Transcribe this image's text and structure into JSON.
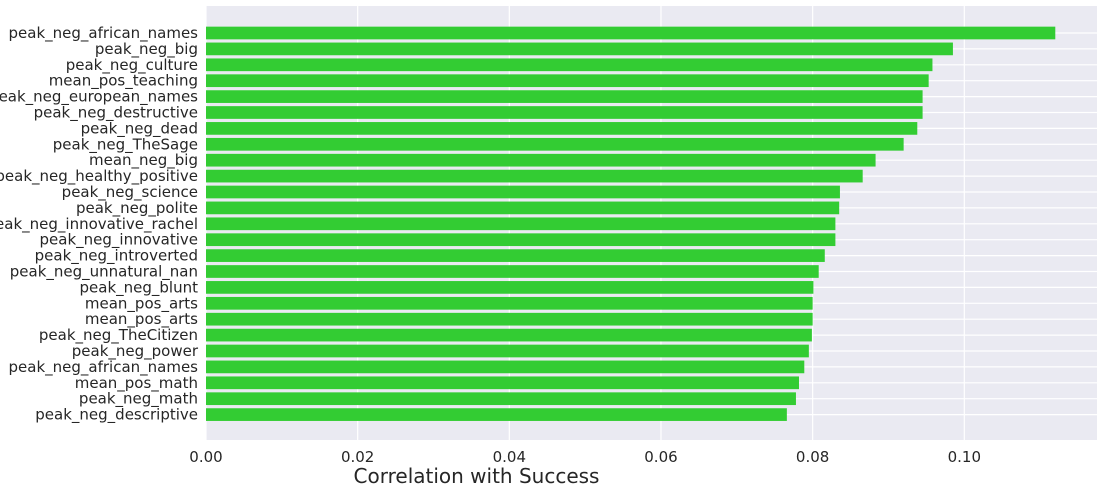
{
  "chart_data": {
    "type": "bar",
    "orientation": "horizontal",
    "xlabel": "Correlation with Success",
    "ylabel": "",
    "xlim": [
      0,
      0.1175
    ],
    "xticks": [
      0.0,
      0.02,
      0.04,
      0.06,
      0.08,
      0.1
    ],
    "xtick_labels": [
      "0.00",
      "0.02",
      "0.04",
      "0.06",
      "0.08",
      "0.10"
    ],
    "grid": true,
    "bar_color": "#33cc33",
    "background_color": "#eaeaf2",
    "categories": [
      "peak_neg_african_names",
      "peak_neg_big",
      "peak_neg_culture",
      "mean_pos_teaching",
      "peak_neg_european_names",
      "peak_neg_destructive",
      "peak_neg_dead",
      "peak_neg_TheSage",
      "mean_neg_big",
      "peak_neg_healthy_positive",
      "peak_neg_science",
      "peak_neg_polite",
      "peak_neg_innovative_rachel",
      "peak_neg_innovative",
      "peak_neg_introverted",
      "peak_neg_unnatural_nan",
      "peak_neg_blunt",
      "mean_pos_arts",
      "mean_pos_arts",
      "peak_neg_TheCitizen",
      "peak_neg_power",
      "peak_neg_african_names",
      "mean_pos_math",
      "peak_neg_math",
      "peak_neg_descriptive"
    ],
    "values": [
      0.112,
      0.0985,
      0.0958,
      0.0953,
      0.0945,
      0.0945,
      0.0938,
      0.092,
      0.0883,
      0.0866,
      0.0836,
      0.0835,
      0.083,
      0.083,
      0.0816,
      0.0808,
      0.0801,
      0.08,
      0.08,
      0.0799,
      0.0795,
      0.0789,
      0.0782,
      0.0778,
      0.0766
    ]
  }
}
